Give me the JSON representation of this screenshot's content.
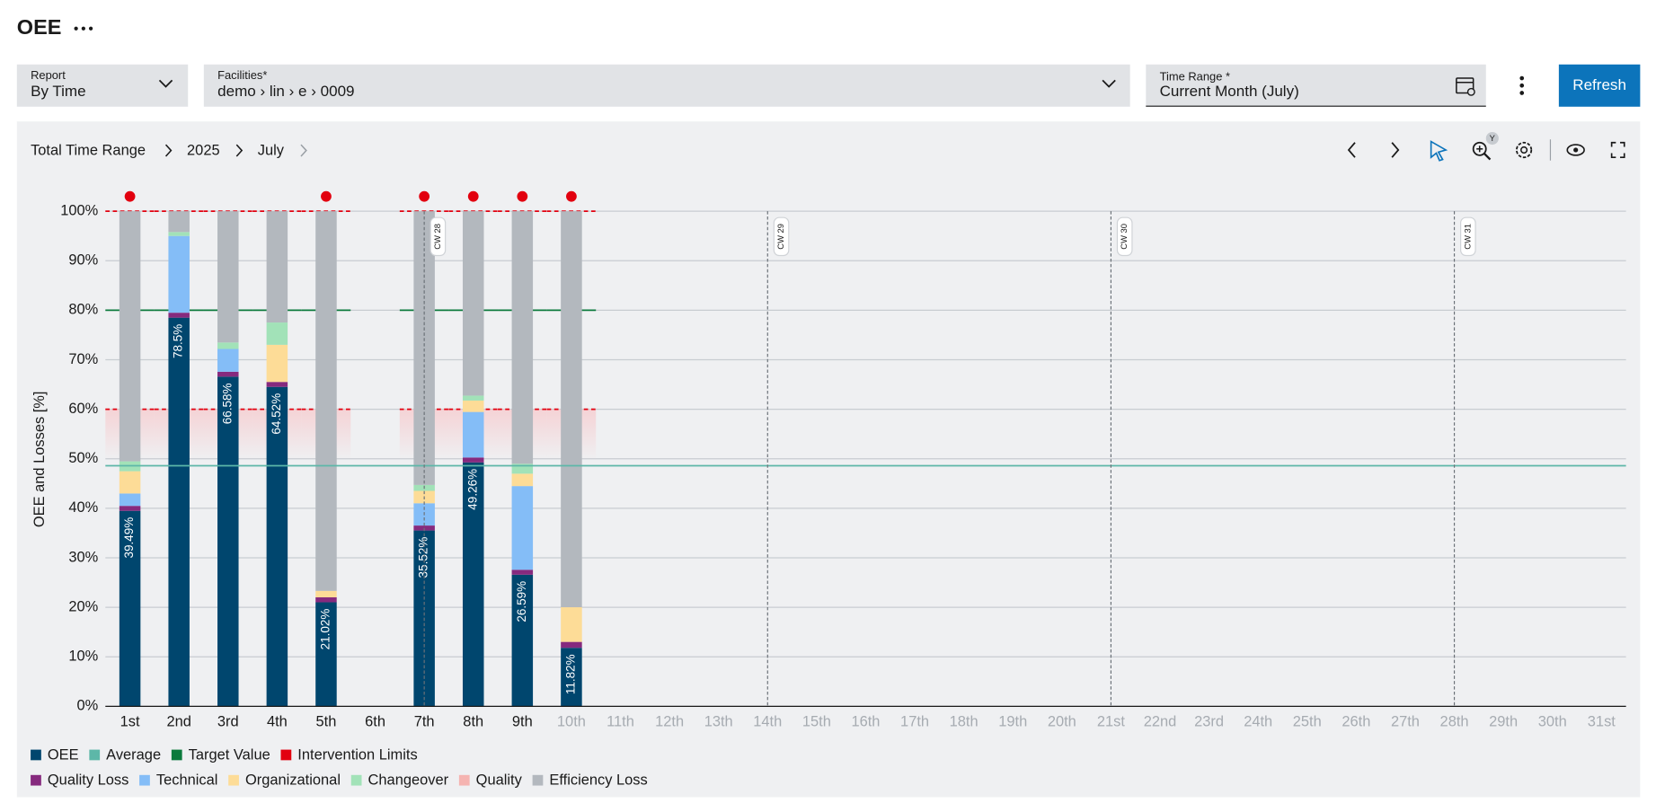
{
  "header": {
    "title": "OEE"
  },
  "filters": [
    {
      "label": "Report",
      "value": "By Time"
    },
    {
      "label": "Facilities*",
      "value": "demo › lin › e › 0009"
    },
    {
      "label": "Time Range *",
      "value": "Current Month (July)"
    }
  ],
  "refresh": "Refresh",
  "breadcrumb": [
    "Total Time Range",
    "2025",
    "July"
  ],
  "zoom_badge": "Y",
  "chart_data": {
    "type": "stacked_bar",
    "ylabel": "OEE and Losses [%]",
    "categories": [
      "1st",
      "2nd",
      "3rd",
      "4th",
      "5th",
      "6th",
      "7th",
      "8th",
      "9th",
      "10th",
      "11th",
      "12th",
      "13th",
      "14th",
      "15th",
      "16th",
      "17th",
      "18th",
      "19th",
      "20th",
      "21st",
      "22nd",
      "23rd",
      "24th",
      "25th",
      "26th",
      "27th",
      "28th",
      "29th",
      "30th",
      "31st"
    ],
    "ylim": [
      0,
      100
    ],
    "yticks": [
      {
        "value": 0,
        "label": "0%"
      },
      {
        "value": 10,
        "label": "10%"
      },
      {
        "value": 20,
        "label": "20%"
      },
      {
        "value": 30,
        "label": "30%"
      },
      {
        "value": 40,
        "label": "40%"
      },
      {
        "value": 50,
        "label": "50%"
      },
      {
        "value": 60,
        "label": "60%"
      },
      {
        "value": 70,
        "label": "70%"
      },
      {
        "value": 80,
        "label": "80%"
      },
      {
        "value": 90,
        "label": "90%"
      },
      {
        "value": 100,
        "label": "100%"
      }
    ],
    "grid": true,
    "series": [
      {
        "name": "OEE",
        "color": "#00466e",
        "values": [
          39.49,
          78.5,
          66.58,
          64.52,
          21.02,
          null,
          35.52,
          49.26,
          26.59,
          11.82,
          null,
          null,
          null,
          null,
          null,
          null,
          null,
          null,
          null,
          null,
          null,
          null,
          null,
          null,
          null,
          null,
          null,
          null,
          null,
          null,
          null
        ],
        "value_labels": [
          "39.49%",
          "78.5%",
          "66.58%",
          "64.52%",
          "21.02%",
          null,
          "35.52%",
          "49.26%",
          "26.59%",
          "11.82%",
          null,
          null,
          null,
          null,
          null,
          null,
          null,
          null,
          null,
          null,
          null,
          null,
          null,
          null,
          null,
          null,
          null,
          null,
          null,
          null,
          null
        ]
      },
      {
        "name": "Quality Loss",
        "color": "#862a7e",
        "values": [
          1,
          1,
          1,
          1,
          1,
          null,
          1,
          1,
          1,
          1.2,
          null,
          null,
          null,
          null,
          null,
          null,
          null,
          null,
          null,
          null,
          null,
          null,
          null,
          null,
          null,
          null,
          null,
          null,
          null,
          null,
          null
        ]
      },
      {
        "name": "Technical",
        "color": "#84bdf7",
        "values": [
          2.5,
          15.5,
          4.6,
          0,
          0,
          null,
          4.5,
          9.2,
          16.9,
          0,
          null,
          null,
          null,
          null,
          null,
          null,
          null,
          null,
          null,
          null,
          null,
          null,
          null,
          null,
          null,
          null,
          null,
          null,
          null,
          null,
          null
        ]
      },
      {
        "name": "Organizational",
        "color": "#fddc97",
        "values": [
          4.5,
          0,
          0,
          7.5,
          1.3,
          null,
          2.5,
          2.3,
          2.5,
          7,
          null,
          null,
          null,
          null,
          null,
          null,
          null,
          null,
          null,
          null,
          null,
          null,
          null,
          null,
          null,
          null,
          null,
          null,
          null,
          null,
          null
        ]
      },
      {
        "name": "Changeover",
        "color": "#a2e2b8",
        "values": [
          2,
          0.8,
          1.3,
          4.5,
          0,
          null,
          1.2,
          1,
          2,
          0,
          null,
          null,
          null,
          null,
          null,
          null,
          null,
          null,
          null,
          null,
          null,
          null,
          null,
          null,
          null,
          null,
          null,
          null,
          null,
          null,
          null
        ]
      },
      {
        "name": "Quality",
        "color": "#f5b4b1",
        "values": [
          0,
          0,
          0,
          0,
          0,
          null,
          0,
          0,
          0,
          0,
          null,
          null,
          null,
          null,
          null,
          null,
          null,
          null,
          null,
          null,
          null,
          null,
          null,
          null,
          null,
          null,
          null,
          null,
          null,
          null,
          null
        ]
      },
      {
        "name": "Efficiency Loss",
        "color": "#b3b8be",
        "values": [
          50.51,
          4.2,
          26.52,
          22.48,
          76.68,
          null,
          55.28,
          37.24,
          51.01,
          79.98,
          null,
          null,
          null,
          null,
          null,
          null,
          null,
          null,
          null,
          null,
          null,
          null,
          null,
          null,
          null,
          null,
          null,
          null,
          null,
          null,
          null
        ]
      }
    ],
    "average": {
      "name": "Average",
      "color": "#5db7a8",
      "value": 48.6
    },
    "target": {
      "name": "Target Value",
      "color": "#0b7a3c",
      "value": 80
    },
    "intervention_limits": {
      "name": "Intervention Limits",
      "color": "#e2000f",
      "values": [
        60,
        100
      ]
    },
    "week_markers": [
      {
        "label": "CW 28",
        "category": "7th"
      },
      {
        "label": "CW 29",
        "category": "14th"
      },
      {
        "label": "CW 30",
        "category": "21st"
      },
      {
        "label": "CW 31",
        "category": "28th"
      }
    ]
  }
}
